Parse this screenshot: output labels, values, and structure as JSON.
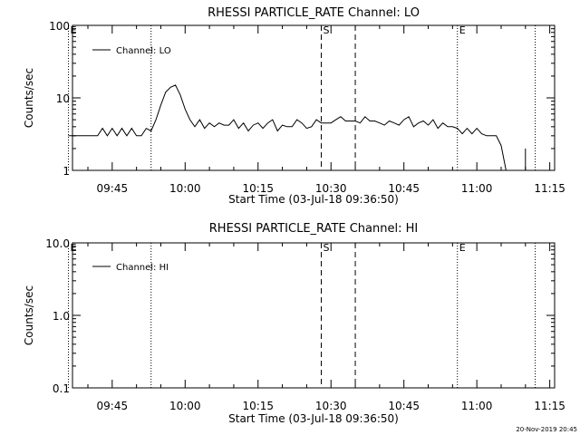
{
  "chart_data": [
    {
      "type": "line",
      "title": "RHESSI PARTICLE_RATE Channel: LO",
      "xlabel": "Start Time (03-Jul-18 09:36:50)",
      "ylabel": "Counts/sec",
      "y_scale": "log",
      "ylim": [
        1,
        100
      ],
      "yticks": [
        1,
        10,
        100
      ],
      "ytick_labels": [
        "1",
        "10",
        "100"
      ],
      "xlim_minutes": [
        9.5,
        3617
      ],
      "xticks": [
        "09:45",
        "10:00",
        "10:15",
        "10:30",
        "10:45",
        "11:00",
        "11:15"
      ],
      "legend": "Channel: LO",
      "legend_position": "top-left",
      "markers": [
        {
          "label": "E",
          "time": "09:36",
          "style": "dotted"
        },
        {
          "label": "",
          "time": "09:53",
          "style": "dotted"
        },
        {
          "label": "S",
          "time": "10:28",
          "style": "dashed"
        },
        {
          "label": "",
          "time": "10:35",
          "style": "dashed"
        },
        {
          "label": "E",
          "time": "10:56",
          "style": "dotted"
        },
        {
          "label": "",
          "time": "11:12",
          "style": "dotted"
        }
      ],
      "series": [
        {
          "name": "Channel: LO",
          "points": [
            [
              "09:36",
              3
            ],
            [
              "09:42",
              3
            ],
            [
              "09:43",
              3.8
            ],
            [
              "09:44",
              3
            ],
            [
              "09:45",
              3.8
            ],
            [
              "09:46",
              3
            ],
            [
              "09:47",
              3.8
            ],
            [
              "09:48",
              3
            ],
            [
              "09:49",
              3.8
            ],
            [
              "09:50",
              3
            ],
            [
              "09:51",
              3
            ],
            [
              "09:52",
              3.8
            ],
            [
              "09:53",
              3.5
            ],
            [
              "09:54",
              5
            ],
            [
              "09:55",
              8
            ],
            [
              "09:56",
              12
            ],
            [
              "09:57",
              14
            ],
            [
              "09:58",
              15
            ],
            [
              "09:59",
              11
            ],
            [
              "10:00",
              7
            ],
            [
              "10:01",
              5
            ],
            [
              "10:02",
              4
            ],
            [
              "10:03",
              5
            ],
            [
              "10:04",
              3.8
            ],
            [
              "10:05",
              4.5
            ],
            [
              "10:06",
              4
            ],
            [
              "10:07",
              4.5
            ],
            [
              "10:08",
              4.2
            ],
            [
              "10:09",
              4.2
            ],
            [
              "10:10",
              5
            ],
            [
              "10:11",
              3.8
            ],
            [
              "10:12",
              4.5
            ],
            [
              "10:13",
              3.5
            ],
            [
              "10:14",
              4.2
            ],
            [
              "10:15",
              4.5
            ],
            [
              "10:16",
              3.8
            ],
            [
              "10:17",
              4.5
            ],
            [
              "10:18",
              5
            ],
            [
              "10:19",
              3.5
            ],
            [
              "10:20",
              4.2
            ],
            [
              "10:21",
              4
            ],
            [
              "10:22",
              4
            ],
            [
              "10:23",
              5
            ],
            [
              "10:24",
              4.5
            ],
            [
              "10:25",
              3.8
            ],
            [
              "10:26",
              4
            ],
            [
              "10:27",
              5
            ],
            [
              "10:28",
              4.5
            ],
            [
              "10:29",
              4.5
            ],
            [
              "10:30",
              4.5
            ],
            [
              "10:31",
              5
            ],
            [
              "10:32",
              5.5
            ],
            [
              "10:33",
              4.8
            ],
            [
              "10:34",
              4.8
            ],
            [
              "10:35",
              4.8
            ],
            [
              "10:36",
              4.5
            ],
            [
              "10:37",
              5.5
            ],
            [
              "10:38",
              4.8
            ],
            [
              "10:39",
              4.8
            ],
            [
              "10:40",
              4.5
            ],
            [
              "10:41",
              4.2
            ],
            [
              "10:42",
              4.8
            ],
            [
              "10:43",
              4.5
            ],
            [
              "10:44",
              4.2
            ],
            [
              "10:45",
              5
            ],
            [
              "10:46",
              5.5
            ],
            [
              "10:47",
              4
            ],
            [
              "10:48",
              4.5
            ],
            [
              "10:49",
              4.8
            ],
            [
              "10:50",
              4.2
            ],
            [
              "10:51",
              5
            ],
            [
              "10:52",
              3.8
            ],
            [
              "10:53",
              4.5
            ],
            [
              "10:54",
              4
            ],
            [
              "10:55",
              4
            ],
            [
              "10:56",
              3.8
            ],
            [
              "10:57",
              3.2
            ],
            [
              "10:58",
              3.8
            ],
            [
              "10:59",
              3.2
            ],
            [
              "11:00",
              3.8
            ],
            [
              "11:01",
              3.2
            ],
            [
              "11:02",
              3
            ],
            [
              "11:03",
              3
            ],
            [
              "11:04",
              3
            ],
            [
              "11:05",
              2.2
            ],
            [
              "11:06",
              1
            ]
          ]
        },
        {
          "name": "Channel: LO",
          "points": [
            [
              "11:10",
              1
            ],
            [
              "11:10",
              2
            ]
          ]
        }
      ]
    },
    {
      "type": "line",
      "title": "RHESSI PARTICLE_RATE Channel: HI",
      "xlabel": "Start Time (03-Jul-18 09:36:50)",
      "ylabel": "Counts/sec",
      "y_scale": "log",
      "ylim": [
        0.1,
        10
      ],
      "yticks": [
        0.1,
        1,
        10
      ],
      "ytick_labels": [
        "0.1",
        "1.0",
        "10.0"
      ],
      "xlim_minutes": [
        9.5,
        3617
      ],
      "xticks": [
        "09:45",
        "10:00",
        "10:15",
        "10:30",
        "10:45",
        "11:00",
        "11:15"
      ],
      "legend": "Channel: HI",
      "legend_position": "top-left",
      "markers": [
        {
          "label": "E",
          "time": "09:36",
          "style": "dotted"
        },
        {
          "label": "",
          "time": "09:53",
          "style": "dotted"
        },
        {
          "label": "S",
          "time": "10:28",
          "style": "dashed"
        },
        {
          "label": "",
          "time": "10:35",
          "style": "dashed"
        },
        {
          "label": "E",
          "time": "10:56",
          "style": "dotted"
        },
        {
          "label": "",
          "time": "11:12",
          "style": "dotted"
        }
      ],
      "series": []
    }
  ],
  "footer": {
    "timestamp": "20-Nov-2019 20:45"
  }
}
